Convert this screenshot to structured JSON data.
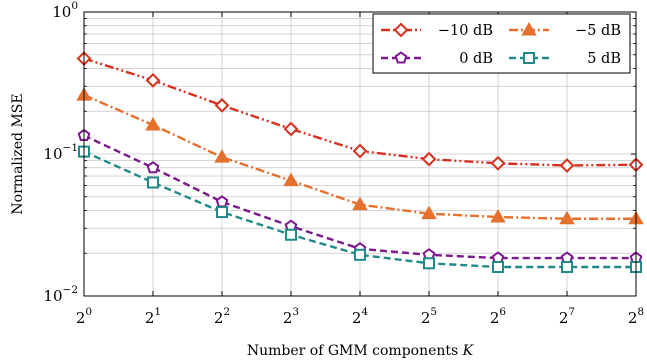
{
  "chart_data": {
    "type": "line",
    "xlabel": "Number of GMM components K",
    "ylabel": "Normalized MSE",
    "x_scale": "log2",
    "y_scale": "log10",
    "x": [
      1,
      2,
      4,
      8,
      16,
      32,
      64,
      128,
      256
    ],
    "x_tick_labels": [
      {
        "base": "2",
        "exp": "0"
      },
      {
        "base": "2",
        "exp": "1"
      },
      {
        "base": "2",
        "exp": "2"
      },
      {
        "base": "2",
        "exp": "3"
      },
      {
        "base": "2",
        "exp": "4"
      },
      {
        "base": "2",
        "exp": "5"
      },
      {
        "base": "2",
        "exp": "6"
      },
      {
        "base": "2",
        "exp": "7"
      },
      {
        "base": "2",
        "exp": "8"
      }
    ],
    "y_tick_labels": [
      {
        "value": 1,
        "base": "10",
        "exp": "0"
      },
      {
        "value": 0.1,
        "base": "10",
        "exp": "−1"
      },
      {
        "value": 0.01,
        "base": "10",
        "exp": "−2"
      }
    ],
    "xlim": [
      1,
      256
    ],
    "ylim": [
      0.01,
      1
    ],
    "grid": true,
    "legend_position": "top-right",
    "series": [
      {
        "name": "−10 dB",
        "color": "#d7301f",
        "dash": "dash-dot-dot",
        "marker": "diamond",
        "values": [
          0.47,
          0.33,
          0.22,
          0.15,
          0.105,
          0.092,
          0.086,
          0.083,
          0.084
        ]
      },
      {
        "name": "−5 dB",
        "color": "#e6702e",
        "dash": "dash-dot",
        "marker": "triangle",
        "values": [
          0.26,
          0.16,
          0.095,
          0.065,
          0.044,
          0.038,
          0.036,
          0.035,
          0.035
        ]
      },
      {
        "name": "0 dB",
        "color": "#7b1a8c",
        "dash": "dashed",
        "marker": "pentagon",
        "values": [
          0.135,
          0.08,
          0.046,
          0.031,
          0.0215,
          0.0195,
          0.0185,
          0.0185,
          0.0185
        ]
      },
      {
        "name": "5 dB",
        "color": "#1f8a88",
        "dash": "dashed",
        "marker": "square",
        "values": [
          0.104,
          0.063,
          0.039,
          0.027,
          0.0195,
          0.017,
          0.016,
          0.016,
          0.016
        ]
      }
    ]
  }
}
